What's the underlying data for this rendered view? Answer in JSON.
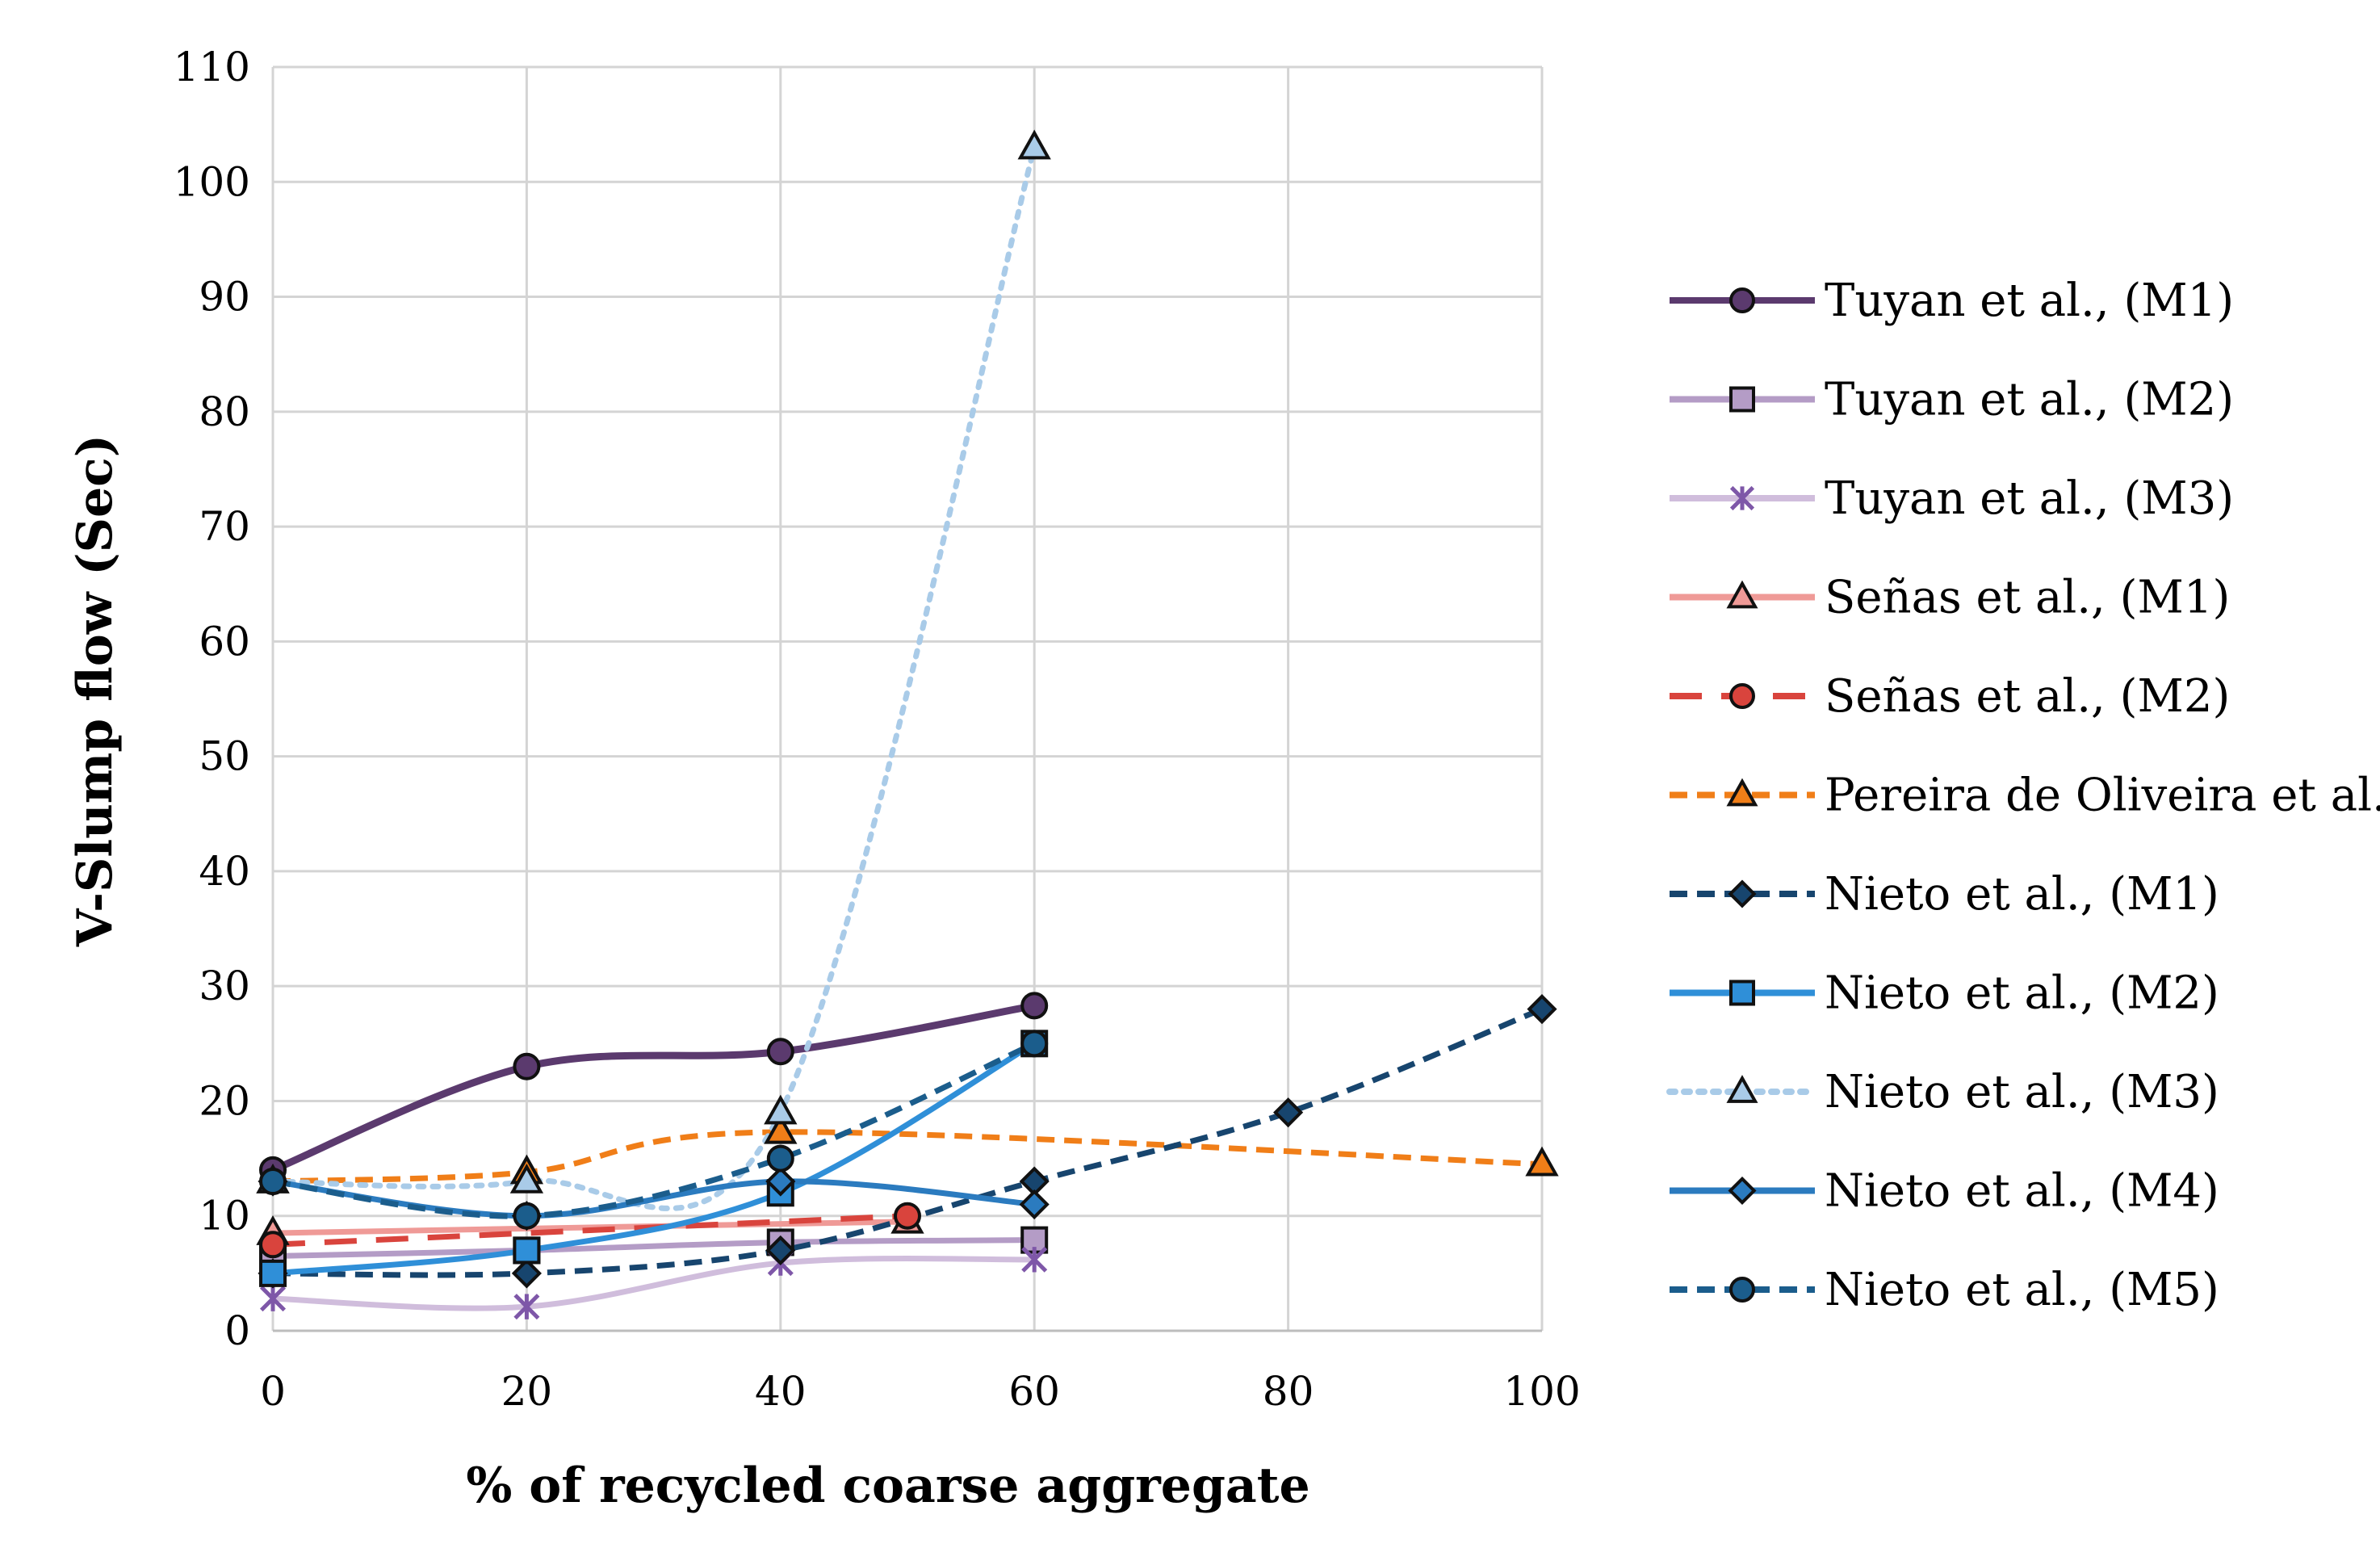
{
  "chart_data": {
    "type": "line",
    "title": "",
    "xlabel": "% of recycled coarse aggregate",
    "ylabel": "V-Slump flow (Sec)",
    "xlim": [
      0,
      100
    ],
    "ylim": [
      0,
      110
    ],
    "x_ticks": [
      "0",
      "20",
      "40",
      "60",
      "80",
      "100"
    ],
    "y_ticks": [
      "0",
      "10",
      "20",
      "30",
      "40",
      "50",
      "60",
      "70",
      "80",
      "90",
      "100",
      "110"
    ],
    "grid": true,
    "legend_position": "right",
    "series": [
      {
        "name": "Tuyan et al., (M1)",
        "color": "#5b3a6e",
        "dash": "solid",
        "marker": "circle",
        "x": [
          0,
          20,
          40,
          60
        ],
        "y": [
          14,
          23,
          24.3,
          28.3
        ]
      },
      {
        "name": "Tuyan et al., (M2)",
        "color": "#b49cc6",
        "dash": "solid",
        "marker": "square",
        "x": [
          0,
          20,
          40,
          60
        ],
        "y": [
          6.5,
          7,
          7.7,
          7.9
        ]
      },
      {
        "name": "Tuyan et al., (M3)",
        "color": "#d0bddc",
        "dash": "solid",
        "marker": "x",
        "x": [
          0,
          20,
          40,
          60
        ],
        "y": [
          2.8,
          2.1,
          5.9,
          6.2
        ]
      },
      {
        "name": "Señas et al., (M1)",
        "color": "#ef9a97",
        "dash": "solid",
        "marker": "triangle",
        "x": [
          0,
          50
        ],
        "y": [
          8.5,
          9.5
        ]
      },
      {
        "name": "Señas et al., (M2)",
        "color": "#d9443d",
        "dash": "longdash",
        "marker": "circle",
        "x": [
          0,
          50
        ],
        "y": [
          7.5,
          10
        ]
      },
      {
        "name": "Pereira de Oliveira et al.,",
        "color": "#f07e18",
        "dash": "dash",
        "marker": "triangle",
        "x": [
          0,
          20,
          40,
          100
        ],
        "y": [
          13,
          13.8,
          17.3,
          14.5
        ]
      },
      {
        "name": "Nieto et al., (M1)",
        "color": "#17456e",
        "dash": "dash",
        "marker": "diamond",
        "x": [
          0,
          20,
          40,
          60,
          80,
          100
        ],
        "y": [
          5,
          5,
          7,
          13,
          19,
          28
        ]
      },
      {
        "name": "Nieto et al., (M2)",
        "color": "#2f8fd8",
        "dash": "solid",
        "marker": "square",
        "x": [
          0,
          20,
          40,
          60
        ],
        "y": [
          5,
          7,
          12,
          25
        ]
      },
      {
        "name": "Nieto et al., (M3)",
        "color": "#a9cbe8",
        "dash": "dot",
        "marker": "triangle",
        "x": [
          0,
          20,
          40,
          60
        ],
        "y": [
          13,
          13,
          19,
          103
        ]
      },
      {
        "name": "Nieto et al., (M4)",
        "color": "#2b7bbf",
        "dash": "solid",
        "marker": "diamond",
        "x": [
          0,
          20,
          40,
          60
        ],
        "y": [
          13,
          10,
          13,
          11
        ]
      },
      {
        "name": "Nieto et al., (M5)",
        "color": "#1b5d8c",
        "dash": "dash",
        "marker": "circle",
        "x": [
          0,
          20,
          40,
          60
        ],
        "y": [
          13,
          10,
          15,
          25
        ]
      }
    ]
  }
}
